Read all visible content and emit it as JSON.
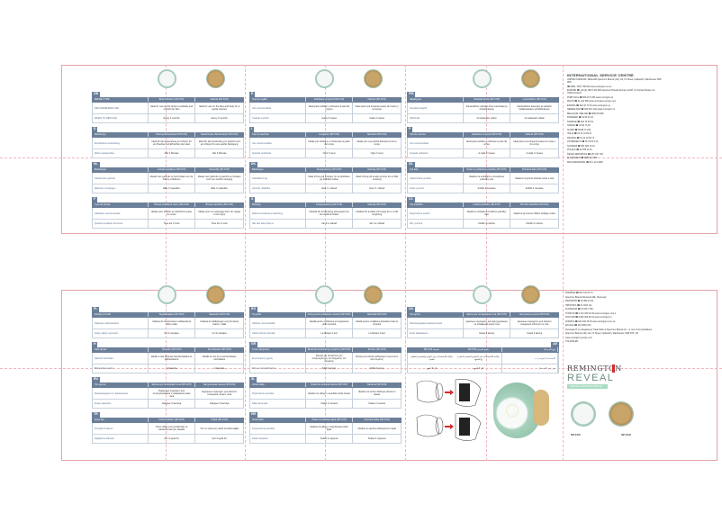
{
  "top_panel": {
    "columns": [
      [
        {
          "code": "GB",
          "head": [
            "BRUSH TYPE",
            "Body Polisher (SP-FC5)",
            "Natural (SP-FC6)"
          ],
          "rows": [
            [
              "RECOMMENDED USE",
              "Ideal for use on the body to exfoliate and refresh the skin",
              "Ideal for use on the face and body for a gentle cleanse"
            ],
            [
              "WHEN TO REPLACE",
              "Every 3 months",
              "Every 3 months"
            ]
          ]
        },
        {
          "code": "D",
          "head": [
            "Bürstentyp",
            "Peeling-Bürstenkopf (SP-FC5)",
            "Naturborsten-Bürstenkopf (SP-FC6)"
          ],
          "rows": [
            [
              "Empfohlene Anwendung",
              "Ideal für die Anwendung am Körper für ein Peeling und Erfrischen der Haut",
              "Ideal für die Anwendung im Gesicht und am Körper für eine sanfte Reinigung"
            ],
            [
              "Wann austauschen",
              "Alle 3 Monate",
              "Alle 3 Monate"
            ]
          ]
        },
        {
          "code": "NL",
          "head": [
            "Borsteltype",
            "Lichaamspolijster (SP-FC5)",
            "Natuurlijk (SP-FC6)"
          ],
          "rows": [
            [
              "Aanbevolen gebruik",
              "Ideaal voor gebruik op het lichaam om de huid te exfoliëren",
              "Ideaal voor gebruik op gezicht en lichaam voor een zachte reiniging"
            ],
            [
              "Wanneer vervangen",
              "Elke 3 maanden",
              "Elke 3 maanden"
            ]
          ]
        },
        {
          "code": "F",
          "head": [
            "Type de brosse",
            "Brosse exfoliante corps (SP-FC5)",
            "Brosse naturelle (SP-FC6)"
          ],
          "rows": [
            [
              "Utilisation recommandée",
              "Idéale pour exfolier et rafraîchir la peau du corps",
              "Idéale pour un nettoyage doux du visage et du corps"
            ],
            [
              "Quand remplacer la brosse",
              "Tous les 3 mois",
              "Tous les 3 mois"
            ]
          ]
        }
      ],
      [
        {
          "code": "E",
          "head": [
            "Tipo de cepillo",
            "Exfoliante corporal (SP-FC5)",
            "Natural (SP-FC6)"
          ],
          "rows": [
            [
              "Uso recomendado",
              "Ideal para exfoliar y refrescar la piel del cuerpo",
              "Ideal para una limpieza suave del rostro y el cuerpo"
            ],
            [
              "Cuándo sustituir",
              "Cada 3 meses",
              "Cada 3 meses"
            ]
          ]
        },
        {
          "code": "I",
          "head": [
            "Tipo di spazzola",
            "Levigante (SP-FC5)",
            "Naturale (SP-FC6)"
          ],
          "rows": [
            [
              "Uso raccomandato",
              "Ideale per esfoliare e rinfrescare la pelle del corpo",
              "Ideale per una pulizia delicata di viso e corpo"
            ],
            [
              "Quando sostituirla",
              "Ogni 3 mesi",
              "Ogni 3 mesi"
            ]
          ]
        },
        {
          "code": "DK",
          "head": [
            "Børstetype",
            "Kropspolering (SP-FC5)",
            "Naturlig (SP-FC6)"
          ],
          "rows": [
            [
              "Anbefalet brug",
              "Ideel til brug på kroppen for at eksfoliere og forfriske huden",
              "Ideel til brug på ansigt og krop for en blid rensning"
            ],
            [
              "Hvornår udskiftes",
              "Hver 3. måned",
              "Hver 3. måned"
            ]
          ]
        },
        {
          "code": "S",
          "head": [
            "Borsttyp",
            "Kroppspolering (SP-FC5)",
            "Naturlig (SP-FC6)"
          ],
          "rows": [
            [
              "Rekommenderad användning",
              "Idealisk för användning på kroppen för att exfoliera huden",
              "Idealisk för ansikte och kropp för en mild rengöring"
            ],
            [
              "När den ska bytas ut",
              "Var 3:e månad",
              "Var 3:e månad"
            ]
          ]
        }
      ],
      [
        {
          "code": "FIN",
          "head": [
            "Harjatyyppi",
            "Vartalokuorinta (SP-FC5)",
            "Luonnollinen (SP-FC6)"
          ],
          "rows": [
            [
              "Suositeltu käyttö",
              "Ihanteellinen vartalon ihon kuorintaan ja virkistämiseen",
              "Ihanteellinen kasvojen ja vartalon hellävaraiseen puhdistukseen"
            ],
            [
              "Vaihtoväli",
              "3 kuukauden välein",
              "3 kuukauden välein"
            ]
          ]
        },
        {
          "code": "P",
          "head": [
            "Tipo de escova",
            "Esfoliante corporal (SP-FC5)",
            "Natural (SP-FC6)"
          ],
          "rows": [
            [
              "Uso recomendado",
              "Ideal para esfoliar e refrescar a pele do corpo",
              "Ideal para uma limpeza suave do rosto e do corpo"
            ],
            [
              "Quando substituir",
              "A cada 3 meses",
              "A cada 3 meses"
            ]
          ]
        },
        {
          "code": "SK",
          "head": [
            "Typ kefy",
            "Kefa na vyhladenie pokožky (SP-FC5)",
            "Prírodná kefa (SP-FC6)"
          ],
          "rows": [
            [
              "Odporúčané použitie",
              "Ideálna na exfoliáciu a osvieženie pokožky tela",
              "Ideálna na jemné čistenie tváre a tela"
            ],
            [
              "Kedy vymeniť",
              "Každé 3 mesiace",
              "Každé 3 mesiace"
            ]
          ]
        },
        {
          "code": "CZ",
          "head": [
            "Typ kartáčku",
            "Leštění pokožky (SP-FC5)",
            "Přírodní kartáček (SP-FC6)"
          ],
          "rows": [
            [
              "Doporučené použití",
              "Ideální k exfoliaci a osvěžení pokožky těla",
              "Ideální k jemnému čištění obličeje a těla"
            ],
            [
              "Kdy vyměnit",
              "Každé 3 měsíce",
              "Každé 3 měsíce"
            ]
          ]
        }
      ]
    ],
    "service": {
      "title": "INTERNATIONAL SERVICE CENTRE",
      "lines": [
        "UNITED KINGDOM / IRELAND  Spectrum Brands (UK) Ltd, Fir Street, Failsworth, Manchester M35 0HS",
        "☎ 0800 / 0817 780 810  www.remington.co.uk",
        "EUROPE  ☎ +49 (0) 180 5 100 600  Spectrum Brands Europe GmbH, Im Kirchenhürstle 4-6, 79224 Umkirch",
        "PORTUGAL  ☎ 808 20 6 066  www.remington.pt",
        "MALTA  ☎ 21 241 866  www.remington-europe.com",
        "ESPAÑA  ☎ 902 10 74 54  www.remington.es",
        "NEDERLAND  ☎ 030 630 1110  www.remington.nl",
        "BELGIQUE / BELGIË  ☎ 0800 53 680",
        "DANMARK  ☎ 44 53 01 02",
        "SVERIGE  ☎ 020 79 39 54",
        "NORGE  ☎ 22 80 73 40",
        "SUOMI  ☎ 09 88 70 240",
        "ITALIA  ☎ 02 41 10 82 27",
        "FRANCE  ☎ 01 41 12 82 74",
        "ÖSTERREICH  ☎ 01 53 83 0 31",
        "SCHWEIZ  ☎ 081 925 10 14",
        "POLSKA  ☎ 22 536 11 00",
        "ČESKÁ REPUBLIKA  ☎ 257 181 700",
        "SLOVENSKO  ☎ 0850 111 550",
        "MAGYARORSZÁG  ☎ 06 1 211 6600"
      ]
    }
  },
  "bottom_panel": {
    "columns": [
      [
        {
          "code": "PL",
          "head": [
            "Rodzaj szczotki",
            "Wygładzająca (SP-FC5)",
            "Naturalna (SP-FC6)"
          ],
          "rows": [
            [
              "Zalecane zastosowanie",
              "Idealna do złuszczania i odświeżania skóry ciała",
              "Idealna do delikatnego oczyszczania twarzy i ciała"
            ],
            [
              "Kiedy należy wymienić",
              "Co 3 miesiące",
              "Co 3 miesiące"
            ]
          ]
        },
        {
          "code": "H",
          "head": [
            "Kefe típusa",
            "Testradír (SP-FC5)",
            "Természetes (SP-FC6)"
          ],
          "rows": [
            [
              "Ajánlott használat",
              "Ideális a test bőrének hámlasztására és felfrissítésére",
              "Ideális az arc és a test kíméletes tisztítására"
            ],
            [
              "Mikor kell cserélni",
              "3 havonta",
              "3 havonta"
            ]
          ]
        },
        {
          "code": "RU",
          "head": [
            "Тип щетки",
            "Щетка для полировки тела (SP-FC5)",
            "Натуральная щетка (SP-FC6)"
          ],
          "rows": [
            [
              "Рекомендации по применению",
              "Идеально подходит для отшелушивания и освежения кожи тела",
              "Идеально подходит для мягкого очищения лица и тела"
            ],
            [
              "Когда заменять",
              "Каждые 3 месяца",
              "Каждые 3 месяца"
            ]
          ]
        },
        {
          "code": "TR",
          "head": [
            "Fırça Tipi",
            "Vücut Parlatıcı (SP-FC5)",
            "Doğal (SP-FC6)"
          ],
          "rows": [
            [
              "Önerilen Kullanım",
              "Vücut cildini pul pul dökmek ve canlandırmak için idealdir",
              "Yüz ve vücut için nazik temizlik sağlar"
            ],
            [
              "Değiştirme Zamanı",
              "Her 3 ayda bir",
              "Her 3 ayda bir"
            ]
          ]
        }
      ],
      [
        {
          "code": "RO",
          "head": [
            "Tip perie",
            "Perie pentru exfolierea corpului (SP-FC5)",
            "Naturală (SP-FC6)"
          ],
          "rows": [
            [
              "Utilizare recomandată",
              "Ideală pentru exfolierea și revigorarea pielii corpului",
              "Ideală pentru curățarea delicată a feței și corpului"
            ],
            [
              "Când trebuie înlocuită",
              "La fiecare 3 luni",
              "La fiecare 3 luni"
            ]
          ]
        },
        {
          "code": "GR",
          "head": [
            "Τύπος βούρτσας",
            "Βούρτσα απολέπισης σώματος (SP-FC5)",
            "Φυσική (SP-FC6)"
          ],
          "rows": [
            [
              "Συνιστώμενη χρήση",
              "Ιδανική για απολέπιση και αναζωογόνηση του δέρματος του σώματος",
              "Ιδανική για απαλό καθαρισμό προσώπου και σώματος"
            ],
            [
              "Πότε να αντικαθίσταται",
              "Κάθε 3 μήνες",
              "Κάθε 3 μήνες"
            ]
          ]
        },
        {
          "code": "SL",
          "head": [
            "Vrsta krtače",
            "Krtača za poliranje telesa (SP-FC5)",
            "Naravna (SP-FC6)"
          ],
          "rows": [
            [
              "Priporočena uporaba",
              "Idealna za piling in osvežitev kože telesa",
              "Idealna za nežno čiščenje obraza in telesa"
            ],
            [
              "Kdaj zamenjati",
              "Vsake 3 mesece",
              "Vsake 3 mesece"
            ]
          ]
        },
        {
          "code": "HR",
          "head": [
            "Vrsta četke",
            "Četka za poliranje tijela (SP-FC5)",
            "Prirodna četka (SP-FC6)"
          ],
          "rows": [
            [
              "Preporučena uporaba",
              "Idealna za pilling i osvježavanje kože tijela",
              "Idealna za nježno čišćenje lica i tijela"
            ],
            [
              "Kada zamijeniti",
              "Svaka 3 mjeseca",
              "Svaka 3 mjeseca"
            ]
          ]
        }
      ],
      [
        {
          "code": "UA",
          "head": [
            "Тип щітки",
            "Щітка для полірування тіла (SP-FC5)",
            "Натуральна щітка (SP-FC6)"
          ],
          "rows": [
            [
              "Рекомендоване використання",
              "Ідеально підходить для відлущування та освіження шкіри тіла",
              "Ідеально підходить для м'якого очищення обличчя та тіла"
            ],
            [
              "Коли замінювати",
              "Кожні 3 місяці",
              "Кожні 3 місяці"
            ]
          ]
        },
        {
          "code": "AE",
          "rtl": true,
          "head": [
            "نوع الفرشاة",
            "ملمع الجسم SP-FC5",
            "طبيعية SP-FC6"
          ],
          "rows": [
            [
              "الاستخدام الموصى به",
              "مثالية للاستخدام على الجسم لتقشير البشرة وإنعاشها",
              "مثالية للاستخدام على الوجه والجسم لتنظيف لطيف"
            ],
            [
              "متى يتم الاستبدال",
              "كل 3 أشهر",
              "كل 3 أشهر"
            ]
          ]
        }
      ]
    ],
    "service_lines": [
      "ROMÂNIA  ☎ 021 311 00 73",
      "Spectrum Brands Romania SRL, Bucureşti",
      "БЪЛГАРИЯ  ☎ 02 489 21 92",
      "HRVATSKA  ☎ 01 3641 111",
      "SLOVENIJA  ☎ 01 530 7760",
      "TÜRKİYE  ☎ 0 212 269 18 49  www.remington.com.tr",
      "РОССИЯ  ☎ 8 800 200 66 10  www.remington.ru",
      "УКРАЇНА  ☎ 044 492 39 45  www.remington.com.ua",
      "ΕΛΛΑΔΑ  ☎ 210 8093 310",
      "Remington® is a Registered Trade Mark of Spectrum Brands Inc., or one of its subsidiaries.",
      "Spectrum Brands (UK) Ltd, Fir Street, Failsworth, Manchester, M35 0HS, UK",
      "www.remington-europe.com",
      "T22-0001481"
    ]
  },
  "branding": {
    "brand": "REMINGTON",
    "product": "REVEAL",
    "tagline": "GENTLE CLEANSING BRUSH",
    "models": [
      "SP-FC5",
      "SP-FC6"
    ]
  }
}
